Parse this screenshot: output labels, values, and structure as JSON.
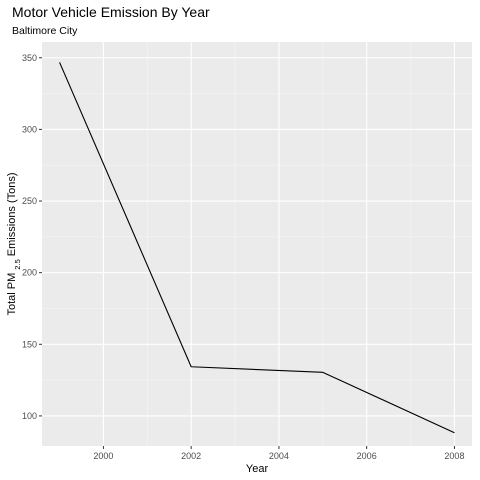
{
  "chart_data": {
    "type": "line",
    "title": "Motor Vehicle Emission By Year",
    "subtitle": "Baltimore City",
    "xlabel": "Year",
    "ylabel": {
      "prefix": "Total PM",
      "subscript": "2.5",
      "suffix": " Emissions (Tons)"
    },
    "x": [
      1999,
      2002,
      2005,
      2008
    ],
    "series": [
      {
        "values": [
          346.82,
          134.31,
          130.43,
          88.28
        ]
      }
    ],
    "xlim": [
      1998.6,
      2008.4
    ],
    "ylim": [
      79,
      361
    ],
    "x_ticks": [
      2000,
      2002,
      2004,
      2006,
      2008
    ],
    "x_tick_labels": [
      "2000",
      "2002",
      "2004",
      "2006",
      "2008"
    ],
    "y_ticks": [
      100,
      150,
      200,
      250,
      300,
      350
    ],
    "y_tick_labels": [
      "100",
      "150",
      "200",
      "250",
      "300",
      "350"
    ],
    "grid": true,
    "legend": "none",
    "colors": {
      "panel": "#ebebeb",
      "grid_major": "#ffffff",
      "grid_minor": "#f5f5f5",
      "line": "#000000",
      "tick": "#333333",
      "tick_label": "#4d4d4d"
    }
  }
}
